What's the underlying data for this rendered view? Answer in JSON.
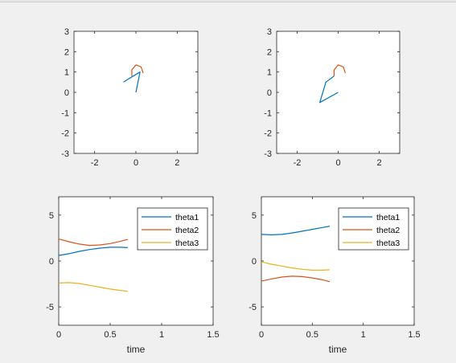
{
  "colors": {
    "background": "#f0f0f0",
    "axes_background": "#ffffff",
    "axes_color": "#262626",
    "series": [
      "#0072bd",
      "#d95319",
      "#edb120"
    ]
  },
  "chart_data": [
    {
      "type": "line",
      "subplot": "top-left",
      "xlim": [
        -3,
        3
      ],
      "ylim": [
        -3,
        3
      ],
      "xticks": [
        -2,
        0,
        2
      ],
      "yticks": [
        -3,
        -2,
        -1,
        0,
        1,
        2,
        3
      ],
      "xlabel": "",
      "ylabel": "",
      "grid": false,
      "series": [
        {
          "role": "arm",
          "color": "#0072bd",
          "points": [
            [
              0.0,
              0.0
            ],
            [
              0.2,
              1.0
            ],
            [
              -0.3,
              0.7
            ],
            [
              -0.6,
              0.5
            ]
          ]
        },
        {
          "role": "end-effector-trace",
          "color": "#d95319",
          "points": [
            [
              -0.2,
              0.8
            ],
            [
              -0.2,
              1.1
            ],
            [
              0.0,
              1.35
            ],
            [
              0.25,
              1.25
            ],
            [
              0.35,
              0.95
            ]
          ]
        }
      ]
    },
    {
      "type": "line",
      "subplot": "top-right",
      "xlim": [
        -3,
        3
      ],
      "ylim": [
        -3,
        3
      ],
      "xticks": [
        -2,
        0,
        2
      ],
      "yticks": [
        -3,
        -2,
        -1,
        0,
        1,
        2,
        3
      ],
      "xlabel": "",
      "ylabel": "",
      "grid": false,
      "series": [
        {
          "role": "arm",
          "color": "#0072bd",
          "points": [
            [
              0.0,
              0.0
            ],
            [
              -0.9,
              -0.5
            ],
            [
              -0.6,
              0.5
            ],
            [
              -0.2,
              0.8
            ]
          ]
        },
        {
          "role": "end-effector-trace",
          "color": "#d95319",
          "points": [
            [
              -0.2,
              0.8
            ],
            [
              -0.2,
              1.1
            ],
            [
              0.0,
              1.35
            ],
            [
              0.25,
              1.25
            ],
            [
              0.35,
              0.95
            ]
          ]
        }
      ]
    },
    {
      "type": "line",
      "subplot": "bottom-left",
      "xlim": [
        0,
        1.5
      ],
      "ylim": [
        -7,
        7
      ],
      "xticks": [
        0,
        0.5,
        1,
        1.5
      ],
      "yticks": [
        -5,
        0,
        5
      ],
      "xlabel": "time",
      "ylabel": "",
      "legend_position": "top-right",
      "x": [
        0,
        0.1,
        0.2,
        0.3,
        0.4,
        0.5,
        0.6,
        0.67
      ],
      "series": [
        {
          "name": "theta1",
          "color": "#0072bd",
          "values": [
            0.6,
            0.8,
            1.05,
            1.25,
            1.4,
            1.5,
            1.5,
            1.45
          ]
        },
        {
          "name": "theta2",
          "color": "#d95319",
          "values": [
            2.4,
            2.1,
            1.85,
            1.7,
            1.75,
            1.9,
            2.15,
            2.35
          ]
        },
        {
          "name": "theta3",
          "color": "#edb120",
          "values": [
            -2.4,
            -2.35,
            -2.45,
            -2.65,
            -2.85,
            -3.05,
            -3.2,
            -3.3
          ]
        }
      ]
    },
    {
      "type": "line",
      "subplot": "bottom-right",
      "xlim": [
        0,
        1.5
      ],
      "ylim": [
        -7,
        7
      ],
      "xticks": [
        0,
        0.5,
        1,
        1.5
      ],
      "yticks": [
        -5,
        0,
        5
      ],
      "xlabel": "time",
      "ylabel": "",
      "legend_position": "top-right",
      "x": [
        0,
        0.1,
        0.2,
        0.3,
        0.4,
        0.5,
        0.6,
        0.67
      ],
      "series": [
        {
          "name": "theta1",
          "color": "#0072bd",
          "values": [
            2.9,
            2.85,
            2.9,
            3.05,
            3.25,
            3.45,
            3.65,
            3.8
          ]
        },
        {
          "name": "theta2",
          "color": "#d95319",
          "values": [
            -2.2,
            -1.95,
            -1.75,
            -1.65,
            -1.7,
            -1.85,
            -2.05,
            -2.25
          ]
        },
        {
          "name": "theta3",
          "color": "#edb120",
          "values": [
            -0.1,
            -0.35,
            -0.55,
            -0.75,
            -0.9,
            -1.0,
            -1.0,
            -0.95
          ]
        }
      ]
    }
  ]
}
